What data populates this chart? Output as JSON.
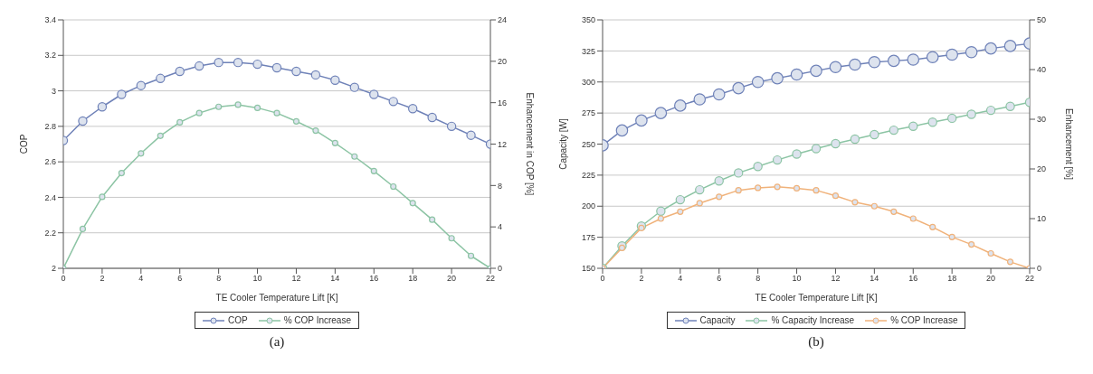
{
  "chart_data": [
    {
      "type": "line",
      "xlabel": "TE Cooler Temperature Lift [K]",
      "ylabel": "COP",
      "y2label": "Enhancement in COP [%]",
      "annotations": [
        "(a)"
      ],
      "x": [
        0,
        1,
        2,
        3,
        4,
        5,
        6,
        7,
        8,
        9,
        10,
        11,
        12,
        13,
        14,
        15,
        16,
        17,
        18,
        19,
        20,
        21,
        22
      ],
      "xlim": [
        0,
        22
      ],
      "xticks": [
        0,
        2,
        4,
        6,
        8,
        10,
        12,
        14,
        16,
        18,
        20,
        22
      ],
      "ylim": [
        2,
        3.4
      ],
      "yticks": [
        2,
        2.2,
        2.4,
        2.6,
        2.8,
        3,
        3.2,
        3.4
      ],
      "y2lim": [
        0,
        24
      ],
      "y2ticks": [
        0,
        4,
        8,
        12,
        16,
        20,
        24
      ],
      "grid": "y",
      "legend": "bottom",
      "marker": "circle",
      "line_style": "solid",
      "series": [
        {
          "name": "COP",
          "color": "#6f82b8",
          "values": [
            2.72,
            2.83,
            2.91,
            2.98,
            3.03,
            3.07,
            3.11,
            3.14,
            3.16,
            3.16,
            3.15,
            3.13,
            3.11,
            3.09,
            3.06,
            3.02,
            2.98,
            2.94,
            2.9,
            2.85,
            2.8,
            2.75,
            2.7
          ]
        },
        {
          "name": "% COP Increase",
          "color": "#8cc4a4",
          "axis": "y2",
          "values": [
            0,
            3.8,
            6.9,
            9.2,
            11.1,
            12.8,
            14.1,
            15,
            15.6,
            15.8,
            15.5,
            15,
            14.2,
            13.3,
            12.1,
            10.8,
            9.4,
            7.9,
            6.3,
            4.7,
            2.9,
            1.2,
            0
          ]
        }
      ]
    },
    {
      "type": "line",
      "xlabel": "TE Cooler Temperature Lift [K]",
      "ylabel": "Capacity [W]",
      "y2label": "Enhancement [%]",
      "annotations": [
        "(b)"
      ],
      "x": [
        0,
        1,
        2,
        3,
        4,
        5,
        6,
        7,
        8,
        9,
        10,
        11,
        12,
        13,
        14,
        15,
        16,
        17,
        18,
        19,
        20,
        21,
        22
      ],
      "xlim": [
        0,
        22
      ],
      "xticks": [
        0,
        2,
        4,
        6,
        8,
        10,
        12,
        14,
        16,
        18,
        20,
        22
      ],
      "ylim": [
        150,
        350
      ],
      "yticks": [
        150,
        175,
        200,
        225,
        250,
        275,
        300,
        325,
        350
      ],
      "y2lim": [
        0,
        50
      ],
      "y2ticks": [
        0,
        10,
        20,
        30,
        40,
        50
      ],
      "grid": "y",
      "legend": "bottom",
      "marker": "circle",
      "line_style": "solid",
      "series": [
        {
          "name": "Capacity",
          "color": "#6f82b8",
          "values": [
            249,
            261,
            269,
            275,
            281,
            286,
            290,
            295,
            300,
            303,
            306,
            309,
            312,
            314,
            316,
            317,
            318,
            320,
            322,
            324,
            327,
            329,
            331
          ]
        },
        {
          "name": "% Capacity Increase",
          "color": "#8cc4a4",
          "axis": "y2",
          "values": [
            0,
            4.5,
            8.5,
            11.5,
            13.8,
            15.8,
            17.6,
            19.2,
            20.5,
            21.8,
            23,
            24.1,
            25.1,
            26,
            26.9,
            27.8,
            28.6,
            29.4,
            30.2,
            31,
            31.8,
            32.6,
            33.4
          ]
        },
        {
          "name": "% COP Increase",
          "color": "#f0b27a",
          "axis": "y2",
          "values": [
            0,
            4.1,
            8.1,
            10,
            11.4,
            13.1,
            14.4,
            15.7,
            16.2,
            16.4,
            16.1,
            15.7,
            14.6,
            13.3,
            12.5,
            11.4,
            10,
            8.3,
            6.3,
            4.8,
            3,
            1.3,
            0
          ]
        }
      ]
    }
  ]
}
